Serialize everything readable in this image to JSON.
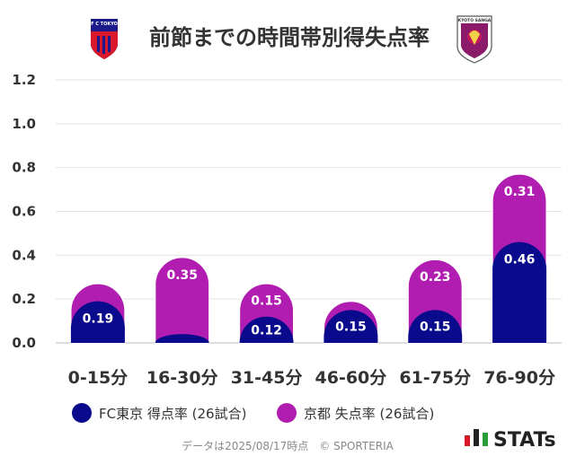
{
  "chart_data": {
    "type": "bar",
    "title": "前節までの時間帯別得失点率",
    "categories": [
      "0-15分",
      "16-30分",
      "31-45分",
      "46-60分",
      "61-75分",
      "76-90分"
    ],
    "series": [
      {
        "name": "FC東京 得点率 (26試合)",
        "color": "#0a0a8c",
        "values": [
          0.19,
          0.04,
          0.12,
          0.15,
          0.15,
          0.46
        ]
      },
      {
        "name": "京都 失点率 (26試合)",
        "color": "#b01db0",
        "values": [
          0.08,
          0.35,
          0.15,
          0.04,
          0.23,
          0.31
        ]
      }
    ],
    "data_labels": [
      [
        "0.19",
        "",
        "0.12",
        "0.15",
        "0.15",
        "0.46"
      ],
      [
        "",
        "0.35",
        "0.15",
        "",
        "0.23",
        "0.31"
      ]
    ],
    "yticks": [
      "0.0",
      "0.2",
      "0.4",
      "0.6",
      "0.8",
      "1.0",
      "1.2"
    ],
    "ylim": [
      0,
      1.2
    ],
    "stacked": true,
    "grid": true,
    "legend_position": "bottom"
  },
  "logos": {
    "left_team_text": "F C TOKYO",
    "right_team_text": "KYOTO SANGA"
  },
  "footer": {
    "note": "データは2025/08/17時点　© SPORTERIA",
    "brand": "STATs"
  }
}
